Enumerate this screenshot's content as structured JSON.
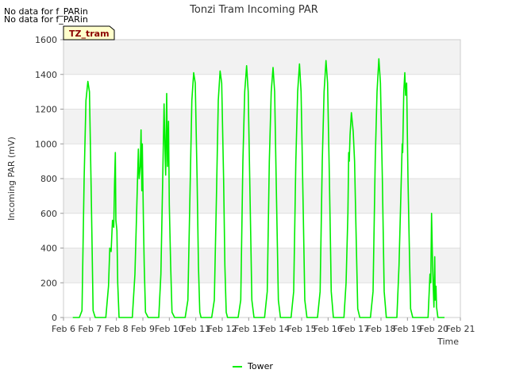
{
  "notes": [
    "No data for f_PARin",
    "No data for f_PARin"
  ],
  "site_label": "TZ_tram",
  "chart_data": {
    "type": "line",
    "title": "Tonzi Tram Incoming PAR",
    "xlabel": "Time",
    "ylabel": "Incoming PAR (mV)",
    "xlim": [
      6,
      21
    ],
    "ylim": [
      0,
      1600
    ],
    "x_ticks": [
      {
        "v": 6,
        "label": "Feb 6"
      },
      {
        "v": 7,
        "label": "Feb 7"
      },
      {
        "v": 8,
        "label": "Feb 8"
      },
      {
        "v": 9,
        "label": "Feb 9"
      },
      {
        "v": 10,
        "label": "Feb 10"
      },
      {
        "v": 11,
        "label": "Feb 11"
      },
      {
        "v": 12,
        "label": "Feb 12"
      },
      {
        "v": 13,
        "label": "Feb 13"
      },
      {
        "v": 14,
        "label": "Feb 14"
      },
      {
        "v": 15,
        "label": "Feb 15"
      },
      {
        "v": 16,
        "label": "Feb 16"
      },
      {
        "v": 17,
        "label": "Feb 17"
      },
      {
        "v": 18,
        "label": "Feb 18"
      },
      {
        "v": 19,
        "label": "Feb 19"
      },
      {
        "v": 20,
        "label": "Feb 20"
      },
      {
        "v": 21,
        "label": "Feb 21"
      }
    ],
    "y_ticks": [
      0,
      200,
      400,
      600,
      800,
      1000,
      1200,
      1400,
      1600
    ],
    "grid": true,
    "legend_position": "bottom-center",
    "series": [
      {
        "name": "Tower",
        "color": "#00ee00",
        "points": [
          [
            6.35,
            0
          ],
          [
            6.6,
            0
          ],
          [
            6.7,
            40
          ],
          [
            6.78,
            800
          ],
          [
            6.85,
            1250
          ],
          [
            6.92,
            1360
          ],
          [
            6.98,
            1300
          ],
          [
            7.05,
            700
          ],
          [
            7.12,
            40
          ],
          [
            7.2,
            0
          ],
          [
            7.6,
            0
          ],
          [
            7.7,
            180
          ],
          [
            7.75,
            400
          ],
          [
            7.8,
            380
          ],
          [
            7.85,
            560
          ],
          [
            7.9,
            520
          ],
          [
            7.93,
            770
          ],
          [
            7.96,
            950
          ],
          [
            7.98,
            560
          ],
          [
            8.02,
            500
          ],
          [
            8.05,
            200
          ],
          [
            8.1,
            0
          ],
          [
            8.6,
            0
          ],
          [
            8.7,
            250
          ],
          [
            8.78,
            700
          ],
          [
            8.83,
            970
          ],
          [
            8.86,
            800
          ],
          [
            8.9,
            870
          ],
          [
            8.93,
            1080
          ],
          [
            8.96,
            730
          ],
          [
            8.98,
            1000
          ],
          [
            9.02,
            550
          ],
          [
            9.05,
            300
          ],
          [
            9.1,
            30
          ],
          [
            9.2,
            0
          ],
          [
            9.6,
            0
          ],
          [
            9.68,
            250
          ],
          [
            9.75,
            800
          ],
          [
            9.8,
            1230
          ],
          [
            9.83,
            1000
          ],
          [
            9.86,
            820
          ],
          [
            9.9,
            1290
          ],
          [
            9.93,
            870
          ],
          [
            9.97,
            1130
          ],
          [
            10.0,
            650
          ],
          [
            10.05,
            300
          ],
          [
            10.1,
            30
          ],
          [
            10.2,
            0
          ],
          [
            10.6,
            0
          ],
          [
            10.7,
            100
          ],
          [
            10.78,
            700
          ],
          [
            10.85,
            1250
          ],
          [
            10.92,
            1410
          ],
          [
            10.98,
            1350
          ],
          [
            11.05,
            800
          ],
          [
            11.1,
            300
          ],
          [
            11.15,
            30
          ],
          [
            11.2,
            0
          ],
          [
            11.6,
            0
          ],
          [
            11.7,
            100
          ],
          [
            11.78,
            700
          ],
          [
            11.85,
            1250
          ],
          [
            11.92,
            1420
          ],
          [
            11.98,
            1350
          ],
          [
            12.05,
            800
          ],
          [
            12.1,
            300
          ],
          [
            12.15,
            30
          ],
          [
            12.2,
            0
          ],
          [
            12.6,
            0
          ],
          [
            12.7,
            100
          ],
          [
            12.78,
            900
          ],
          [
            12.85,
            1300
          ],
          [
            12.92,
            1450
          ],
          [
            12.98,
            1300
          ],
          [
            13.05,
            700
          ],
          [
            13.12,
            100
          ],
          [
            13.2,
            0
          ],
          [
            13.6,
            0
          ],
          [
            13.7,
            150
          ],
          [
            13.78,
            900
          ],
          [
            13.85,
            1300
          ],
          [
            13.92,
            1440
          ],
          [
            13.98,
            1300
          ],
          [
            14.05,
            700
          ],
          [
            14.12,
            100
          ],
          [
            14.2,
            0
          ],
          [
            14.6,
            0
          ],
          [
            14.7,
            150
          ],
          [
            14.78,
            900
          ],
          [
            14.85,
            1300
          ],
          [
            14.92,
            1460
          ],
          [
            14.98,
            1300
          ],
          [
            15.05,
            700
          ],
          [
            15.12,
            100
          ],
          [
            15.2,
            0
          ],
          [
            15.6,
            0
          ],
          [
            15.7,
            150
          ],
          [
            15.78,
            900
          ],
          [
            15.85,
            1300
          ],
          [
            15.92,
            1480
          ],
          [
            15.98,
            1350
          ],
          [
            16.05,
            800
          ],
          [
            16.12,
            150
          ],
          [
            16.2,
            0
          ],
          [
            16.6,
            0
          ],
          [
            16.68,
            200
          ],
          [
            16.75,
            600
          ],
          [
            16.78,
            950
          ],
          [
            16.8,
            900
          ],
          [
            16.83,
            1050
          ],
          [
            16.88,
            1180
          ],
          [
            16.95,
            1070
          ],
          [
            17.0,
            900
          ],
          [
            17.07,
            400
          ],
          [
            17.12,
            50
          ],
          [
            17.2,
            0
          ],
          [
            17.6,
            0
          ],
          [
            17.7,
            150
          ],
          [
            17.78,
            900
          ],
          [
            17.85,
            1300
          ],
          [
            17.92,
            1490
          ],
          [
            17.98,
            1350
          ],
          [
            18.05,
            800
          ],
          [
            18.12,
            150
          ],
          [
            18.2,
            0
          ],
          [
            18.6,
            0
          ],
          [
            18.68,
            300
          ],
          [
            18.75,
            700
          ],
          [
            18.8,
            1000
          ],
          [
            18.82,
            950
          ],
          [
            18.86,
            1300
          ],
          [
            18.9,
            1410
          ],
          [
            18.93,
            1280
          ],
          [
            18.97,
            1350
          ],
          [
            19.02,
            800
          ],
          [
            19.07,
            400
          ],
          [
            19.12,
            50
          ],
          [
            19.2,
            0
          ],
          [
            19.6,
            0
          ],
          [
            19.78,
            0
          ],
          [
            19.85,
            250
          ],
          [
            19.88,
            200
          ],
          [
            19.91,
            600
          ],
          [
            19.95,
            300
          ],
          [
            19.98,
            150
          ],
          [
            20.0,
            60
          ],
          [
            20.03,
            350
          ],
          [
            20.05,
            100
          ],
          [
            20.08,
            180
          ],
          [
            20.1,
            60
          ],
          [
            20.15,
            0
          ],
          [
            20.4,
            0
          ]
        ]
      }
    ]
  }
}
